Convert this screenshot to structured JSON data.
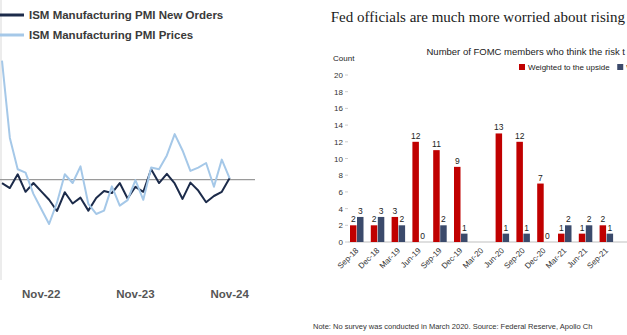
{
  "chart_data": [
    {
      "type": "line",
      "categories": [
        null,
        null,
        null,
        null,
        null,
        "Nov-22",
        null,
        null,
        null,
        null,
        null,
        null,
        null,
        null,
        null,
        null,
        null,
        "Nov-23",
        null,
        null,
        null,
        null,
        null,
        null,
        null,
        null,
        null,
        null,
        null,
        "Nov-24"
      ],
      "series": [
        {
          "name": "ISM Manufacturing PMI New Orders",
          "color": "#1c2b4a",
          "values": [
            49.2,
            48.0,
            51.3,
            47.1,
            49.2,
            47.2,
            45.2,
            42.5,
            47.0,
            44.3,
            45.7,
            42.6,
            45.6,
            47.3,
            46.8,
            49.2,
            45.5,
            48.3,
            47.1,
            52.5,
            49.2,
            51.4,
            49.1,
            45.4,
            49.3,
            47.4,
            44.6,
            46.1,
            47.1,
            50.4
          ]
        },
        {
          "name": "ISM Manufacturing PMI Prices",
          "color": "#a5c8e8",
          "values": [
            78.5,
            60.0,
            52.5,
            51.7,
            46.6,
            43.0,
            39.4,
            44.5,
            51.3,
            49.2,
            53.2,
            44.2,
            41.8,
            42.6,
            48.4,
            43.8,
            45.1,
            49.9,
            45.2,
            52.9,
            52.5,
            55.8,
            60.9,
            57.0,
            52.1,
            52.9,
            54.0,
            48.3,
            54.8,
            50.3
          ]
        }
      ],
      "ylim": [
        26,
        93
      ],
      "yticks": [
        50
      ],
      "grid": true,
      "tick_labels": "x",
      "legend": "top-left"
    },
    {
      "type": "bar",
      "title": "Fed officials are much more worried about rising",
      "subtitle": "Number of FOMC members who think the risk t",
      "y_label": "Count",
      "note": "Note: No survey was conducted in March 2020. Source: Federal Reserve, Apollo Ch",
      "categories": [
        "Sep-18",
        "Dec-18",
        "Mar-19",
        "Jun-19",
        "Sep-19",
        "Dec-19",
        "Mar-20",
        "Jun-20",
        "Sep-20",
        "Dec-20",
        "Mar-21",
        "Jun-21",
        "Sep-21"
      ],
      "series": [
        {
          "name": "Weighted to the upside",
          "color": "#c00000",
          "values": [
            2,
            2,
            3,
            12,
            11,
            9,
            null,
            13,
            12,
            7,
            1,
            1,
            2
          ]
        },
        {
          "name": "W",
          "color": "#3b4a6b",
          "values": [
            3,
            3,
            2,
            0,
            2,
            1,
            null,
            1,
            1,
            0,
            2,
            2,
            1
          ]
        }
      ],
      "ylim": [
        0,
        20
      ],
      "yticks": [
        0,
        2,
        4,
        6,
        8,
        10,
        12,
        14,
        16,
        18,
        20
      ],
      "grid": false,
      "data_labels": true,
      "legend": "top-right"
    }
  ]
}
